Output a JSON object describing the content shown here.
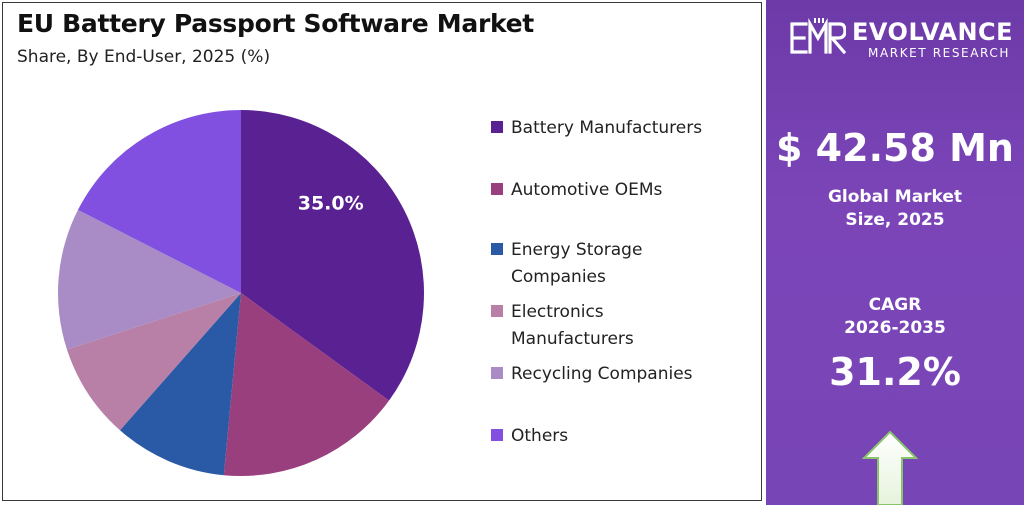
{
  "header": {
    "title": "EU Battery Passport Software Market",
    "subtitle": "Share, By End-User, 2025 (%)"
  },
  "chart_data": {
    "type": "pie",
    "categories": [
      "Battery Manufacturers",
      "Automotive OEMs",
      "Energy Storage Companies",
      "Electronics Manufacturers",
      "Recycling Companies",
      "Others"
    ],
    "values": [
      35.0,
      16.5,
      10.0,
      8.5,
      12.5,
      17.5
    ],
    "data_labels": [
      "35.0%",
      "",
      "",
      "",
      "",
      ""
    ],
    "colors": [
      "#5a2192",
      "#9a3f7e",
      "#2a5aa6",
      "#b880a6",
      "#a98cc6",
      "#8150e0"
    ],
    "legend_placement": "right"
  },
  "legend": {
    "items": [
      {
        "lines": [
          "Battery Manufacturers"
        ],
        "color": "#5a2192"
      },
      {
        "lines": [
          "Automotive OEMs"
        ],
        "color": "#9a3f7e"
      },
      {
        "lines": [
          "Energy Storage",
          "Companies"
        ],
        "color": "#2a5aa6"
      },
      {
        "lines": [
          "Electronics",
          "Manufacturers"
        ],
        "color": "#b880a6"
      },
      {
        "lines": [
          "Recycling Companies"
        ],
        "color": "#a98cc6"
      },
      {
        "lines": [
          "Others"
        ],
        "color": "#8150e0"
      }
    ]
  },
  "brand": {
    "name": "EVOLVANCE",
    "tagline": "MARKET RESEARCH",
    "logo_icon": "emr-logo-icon"
  },
  "stats": {
    "market_value": "$ 42.58 Mn",
    "market_label_line1": "Global Market",
    "market_label_line2": "Size, 2025",
    "cagr_label_line1": "CAGR",
    "cagr_label_line2": "2026-2035",
    "cagr_value": "31.2%",
    "arrow_icon": "up-arrow-icon"
  }
}
